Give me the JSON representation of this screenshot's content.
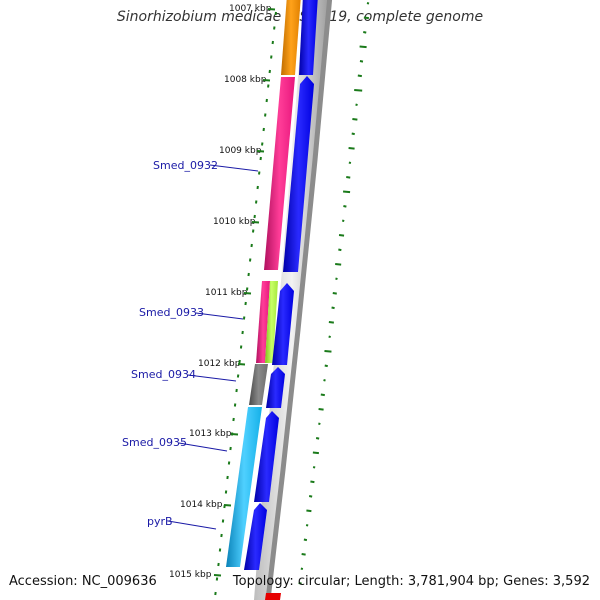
{
  "title": "Sinorhizobium medicae WSM419, complete genome",
  "footer": {
    "accession": "Accession: NC_009636",
    "summary": "Topology: circular; Length: 3,781,904 bp; Genes: 3,592"
  },
  "ticks": [
    {
      "label": "1007 kbp",
      "faded": true
    },
    {
      "label": "1008 kbp"
    },
    {
      "label": "1009 kbp"
    },
    {
      "label": "1010 kbp"
    },
    {
      "label": "1011 kbp"
    },
    {
      "label": "1012 kbp"
    },
    {
      "label": "1013 kbp"
    },
    {
      "label": "1014 kbp"
    },
    {
      "label": "1015 kbp"
    }
  ],
  "genes": [
    {
      "label": "Smed_0932"
    },
    {
      "label": "Smed_0933"
    },
    {
      "label": "Smed_0934"
    },
    {
      "label": "Smed_0935"
    },
    {
      "label": "pyrB"
    }
  ],
  "colors": {
    "orange": "#f08c00",
    "magenta": "#e8177d",
    "lime": "#a6e83c",
    "gray": "#6e6e6e",
    "cyan": "#14b0e8",
    "blue": "#0000f0",
    "backbone": "#8c8c8c",
    "skew": "#1a7a1a",
    "label_line": "#1a1aa6",
    "red": "#e60000"
  }
}
